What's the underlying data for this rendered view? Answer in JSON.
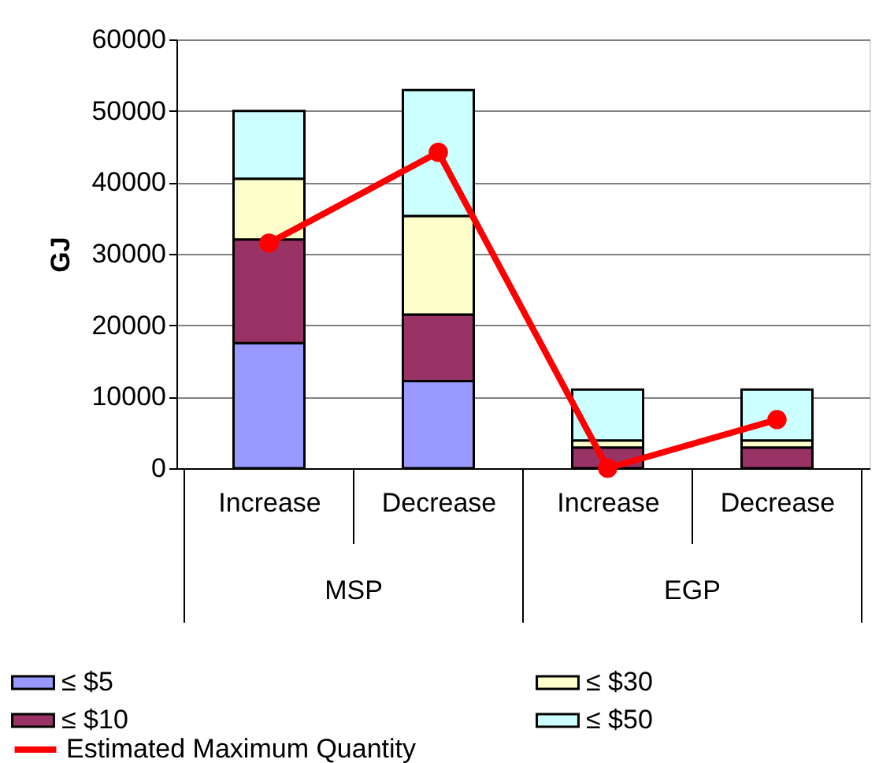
{
  "chart_data": {
    "type": "bar",
    "stacked": true,
    "categories": [
      "Increase",
      "Decrease",
      "Increase",
      "Decrease"
    ],
    "annotations": [
      "MSP",
      "EGP"
    ],
    "ylabel": "GJ",
    "ylim": [
      0,
      60000
    ],
    "yticks": [
      0,
      10000,
      20000,
      30000,
      40000,
      50000,
      60000
    ],
    "grid": "y",
    "legend": "bottom",
    "series": [
      {
        "name": "≤ $5",
        "color": "#9999ff",
        "values": [
          17500,
          12200,
          0,
          0
        ]
      },
      {
        "name": "≤ $10",
        "color": "#993366",
        "values": [
          14500,
          9300,
          2900,
          2900
        ]
      },
      {
        "name": "≤ $30",
        "color": "#ffffcc",
        "values": [
          8500,
          13800,
          1000,
          1000
        ]
      },
      {
        "name": "≤ $50",
        "color": "#ccffff",
        "values": [
          9500,
          17600,
          7100,
          7100
        ]
      },
      {
        "name": "Estimated Maximum Quantity",
        "type": "line",
        "color": "#ff0000",
        "marker": "circle",
        "values": [
          31500,
          44200,
          0,
          6800
        ]
      }
    ]
  }
}
